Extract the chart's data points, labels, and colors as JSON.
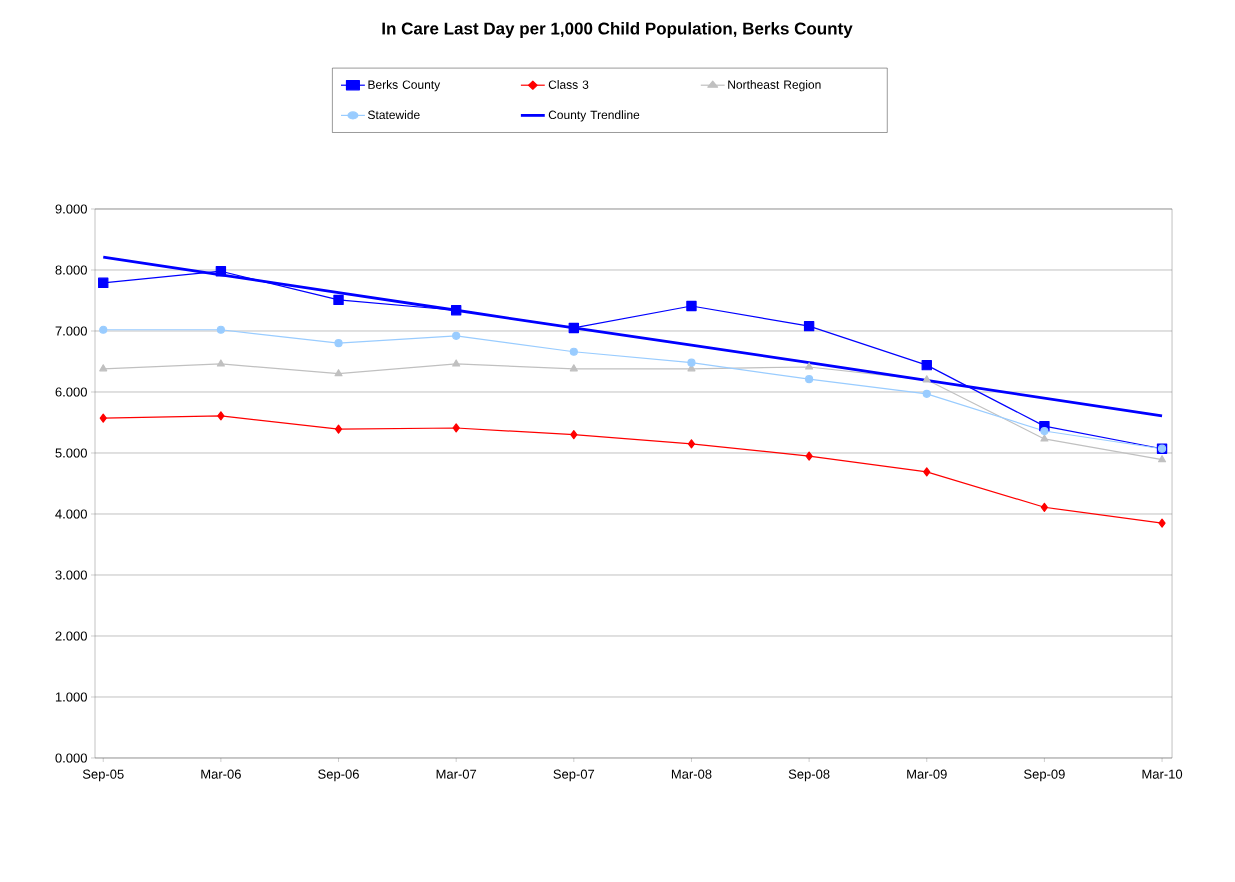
{
  "chart_data": {
    "type": "line",
    "title": "In Care Last Day per 1,000 Child Population, Berks County",
    "categories": [
      "Sep-05",
      "Mar-06",
      "Sep-06",
      "Mar-07",
      "Sep-07",
      "Mar-08",
      "Sep-08",
      "Mar-09",
      "Sep-09",
      "Mar-10"
    ],
    "series": [
      {
        "name": "Berks County",
        "color": "#0000ff",
        "marker": "square",
        "values": [
          7.79,
          7.98,
          7.51,
          7.34,
          7.05,
          7.41,
          7.08,
          6.44,
          5.44,
          5.07
        ]
      },
      {
        "name": "Class 3",
        "color": "#ff0000",
        "marker": "diamond",
        "values": [
          5.57,
          5.61,
          5.39,
          5.41,
          5.3,
          5.15,
          4.95,
          4.69,
          4.11,
          3.85
        ]
      },
      {
        "name": "Northeast Region",
        "color": "#c0c0c0",
        "marker": "triangle",
        "values": [
          6.38,
          6.46,
          6.3,
          6.46,
          6.38,
          6.38,
          6.41,
          6.2,
          5.23,
          4.89
        ]
      },
      {
        "name": "Statewide",
        "color": "#99ccff",
        "marker": "circle",
        "values": [
          7.02,
          7.02,
          6.8,
          6.92,
          6.66,
          6.48,
          6.21,
          5.97,
          5.36,
          5.07
        ]
      },
      {
        "name": "County Trendline",
        "color": "#0000ff",
        "marker": "none",
        "values": [
          8.21,
          7.92,
          7.63,
          7.34,
          7.05,
          6.77,
          6.48,
          6.19,
          5.9,
          5.61
        ]
      }
    ],
    "ylim": [
      0,
      9
    ],
    "yticks": [
      {
        "value": 0,
        "label": "0.000"
      },
      {
        "value": 1,
        "label": "1.000"
      },
      {
        "value": 2,
        "label": "2.000"
      },
      {
        "value": 3,
        "label": "3.000"
      },
      {
        "value": 4,
        "label": "4.000"
      },
      {
        "value": 5,
        "label": "5.000"
      },
      {
        "value": 6,
        "label": "6.000"
      },
      {
        "value": 7,
        "label": "7.000"
      },
      {
        "value": 8,
        "label": "8.000"
      },
      {
        "value": 9,
        "label": "9.000"
      }
    ],
    "grid": "y",
    "legend": "top"
  }
}
